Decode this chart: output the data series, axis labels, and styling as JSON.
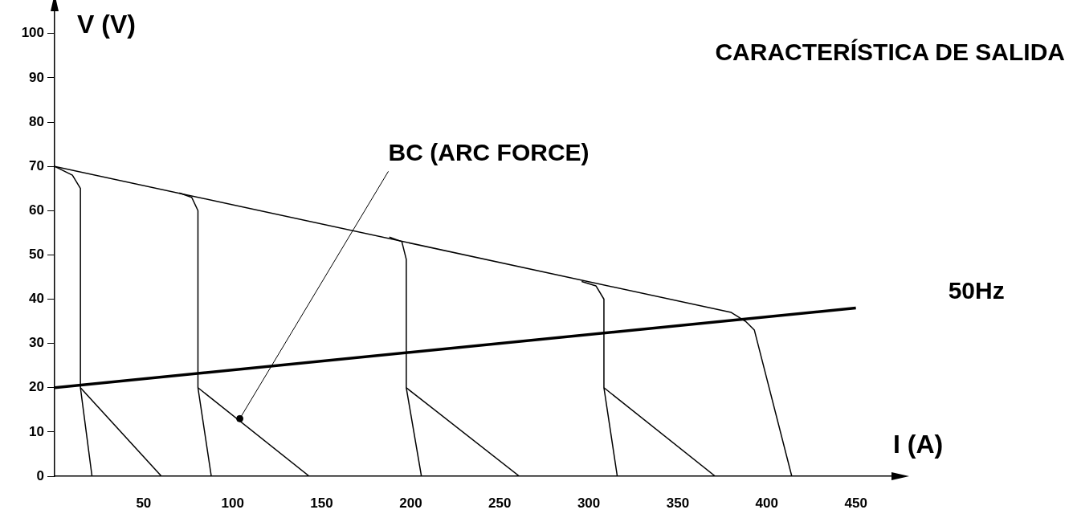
{
  "chart_data": {
    "type": "line",
    "title": "CARACTERÍSTICA DE SALIDA",
    "xlabel": "I (A)",
    "ylabel": "V (V)",
    "xlim": [
      0,
      470
    ],
    "ylim": [
      0,
      105
    ],
    "xticks": [
      50,
      100,
      150,
      200,
      250,
      300,
      350,
      400,
      450
    ],
    "yticks": [
      0,
      10,
      20,
      30,
      40,
      50,
      60,
      70,
      80,
      90,
      100
    ],
    "grid": false,
    "legend": false,
    "marker": "none",
    "line_style": "solid",
    "annotations": [
      {
        "text": "BC (ARC FORCE)",
        "x": 104,
        "y": 13
      }
    ],
    "series": [
      {
        "color": "#000000",
        "x": [
          0,
          380,
          388,
          393,
          414
        ],
        "values": [
          70,
          37,
          35,
          33,
          0
        ]
      },
      {
        "color": "#000000",
        "x": [
          0,
          10,
          14.5,
          14.5,
          21
        ],
        "values": [
          70,
          68,
          65,
          20,
          0
        ]
      },
      {
        "color": "#000000",
        "x": [
          14.5,
          60
        ],
        "values": [
          20,
          0
        ]
      },
      {
        "color": "#000000",
        "x": [
          70,
          77,
          80.5,
          80.5,
          88
        ],
        "values": [
          64,
          63,
          60,
          20,
          0
        ]
      },
      {
        "color": "#000000",
        "x": [
          80.5,
          143
        ],
        "values": [
          20,
          0
        ]
      },
      {
        "color": "#000000",
        "x": [
          188,
          195,
          197.5,
          197.5,
          206
        ],
        "values": [
          54,
          53,
          49,
          20,
          0
        ]
      },
      {
        "color": "#000000",
        "x": [
          197.5,
          261
        ],
        "values": [
          20,
          0
        ]
      },
      {
        "color": "#000000",
        "x": [
          296,
          304,
          308.5,
          308.5,
          316
        ],
        "values": [
          44,
          43,
          40,
          20,
          0
        ]
      },
      {
        "color": "#000000",
        "x": [
          308.5,
          371
        ],
        "values": [
          20,
          0
        ]
      },
      {
        "name": "50Hz",
        "color": "#000000",
        "x": [
          0,
          450
        ],
        "values": [
          20,
          38
        ]
      },
      {
        "type": "scatter",
        "marker": "circle",
        "color": "#000000",
        "x": [
          104
        ],
        "values": [
          13
        ]
      }
    ]
  }
}
